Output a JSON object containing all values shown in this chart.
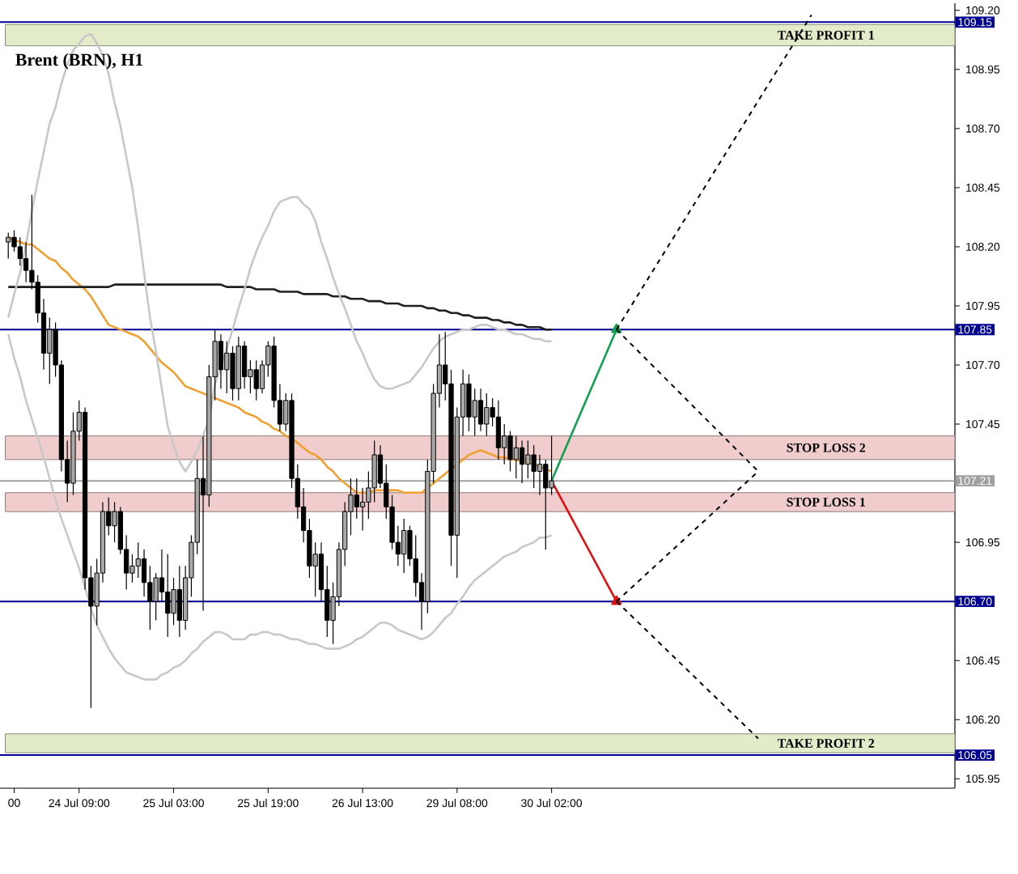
{
  "chart_data": {
    "type": "candlestick",
    "title": "Brent (BRN), H1",
    "categories": [
      null,
      "00",
      null,
      null,
      null,
      null,
      null,
      null,
      null,
      null,
      null,
      null,
      "24 Jul 09:00",
      null,
      null,
      null,
      null,
      null,
      null,
      null,
      null,
      null,
      null,
      null,
      null,
      null,
      null,
      null,
      "25 Jul 03:00",
      null,
      null,
      null,
      null,
      null,
      null,
      null,
      null,
      null,
      null,
      null,
      null,
      null,
      null,
      null,
      "25 Jul 19:00",
      null,
      null,
      null,
      null,
      null,
      null,
      null,
      null,
      null,
      null,
      null,
      null,
      null,
      null,
      null,
      "26 Jul 13:00",
      null,
      null,
      null,
      null,
      null,
      null,
      null,
      null,
      null,
      null,
      null,
      null,
      null,
      null,
      null,
      "29 Jul 08:00",
      null,
      null,
      null,
      null,
      null,
      null,
      null,
      null,
      null,
      null,
      null,
      null,
      null,
      null,
      null,
      "30 Jul 02:00",
      null,
      null,
      null,
      null,
      null,
      null,
      null,
      null,
      null,
      null,
      null,
      null,
      null,
      null,
      null,
      null,
      null,
      null,
      null,
      null,
      null,
      null,
      null,
      null,
      null,
      null,
      null,
      null,
      null,
      null,
      null,
      null,
      null,
      null,
      null,
      null,
      null,
      null,
      null,
      null,
      null,
      null,
      null,
      null
    ],
    "ohlc": [
      [
        108.22,
        108.26,
        108.15,
        108.24
      ],
      [
        108.24,
        108.27,
        108.18,
        108.2
      ],
      [
        108.2,
        108.24,
        108.12,
        108.15
      ],
      [
        108.15,
        108.22,
        108.05,
        108.1
      ],
      [
        108.1,
        108.42,
        108.02,
        108.05
      ],
      [
        108.05,
        108.08,
        107.88,
        107.92
      ],
      [
        107.92,
        107.98,
        107.68,
        107.75
      ],
      [
        107.75,
        107.9,
        107.62,
        107.85
      ],
      [
        107.85,
        107.88,
        107.65,
        107.7
      ],
      [
        107.7,
        107.72,
        107.25,
        107.3
      ],
      [
        107.3,
        107.38,
        107.12,
        107.2
      ],
      [
        107.2,
        107.5,
        107.15,
        107.42
      ],
      [
        107.42,
        107.55,
        107.38,
        107.5
      ],
      [
        107.5,
        107.52,
        106.75,
        106.8
      ],
      [
        106.8,
        106.85,
        106.25,
        106.68
      ],
      [
        106.68,
        106.88,
        106.6,
        106.82
      ],
      [
        106.82,
        107.12,
        106.78,
        107.08
      ],
      [
        107.08,
        107.14,
        106.98,
        107.02
      ],
      [
        107.02,
        107.12,
        106.95,
        107.08
      ],
      [
        107.08,
        107.1,
        106.9,
        106.92
      ],
      [
        106.92,
        106.98,
        106.75,
        106.82
      ],
      [
        106.82,
        106.9,
        106.78,
        106.85
      ],
      [
        106.85,
        106.95,
        106.8,
        106.88
      ],
      [
        106.88,
        106.92,
        106.72,
        106.78
      ],
      [
        106.78,
        106.85,
        106.58,
        106.7
      ],
      [
        106.7,
        106.82,
        106.62,
        106.8
      ],
      [
        106.8,
        106.92,
        106.7,
        106.74
      ],
      [
        106.74,
        106.9,
        106.55,
        106.65
      ],
      [
        106.65,
        106.8,
        106.6,
        106.75
      ],
      [
        106.75,
        106.85,
        106.55,
        106.62
      ],
      [
        106.62,
        106.85,
        106.58,
        106.8
      ],
      [
        106.8,
        106.98,
        106.72,
        106.95
      ],
      [
        106.95,
        107.3,
        106.9,
        107.22
      ],
      [
        107.22,
        107.4,
        106.66,
        107.15
      ],
      [
        107.15,
        107.7,
        107.1,
        107.65
      ],
      [
        107.65,
        107.85,
        107.55,
        107.8
      ],
      [
        107.8,
        107.83,
        107.6,
        107.68
      ],
      [
        107.68,
        107.8,
        107.58,
        107.75
      ],
      [
        107.75,
        107.78,
        107.55,
        107.6
      ],
      [
        107.6,
        107.82,
        107.55,
        107.78
      ],
      [
        107.78,
        107.8,
        107.6,
        107.65
      ],
      [
        107.65,
        107.72,
        107.58,
        107.68
      ],
      [
        107.68,
        107.72,
        107.55,
        107.6
      ],
      [
        107.6,
        107.72,
        107.58,
        107.7
      ],
      [
        107.7,
        107.8,
        107.65,
        107.78
      ],
      [
        107.78,
        107.82,
        107.52,
        107.55
      ],
      [
        107.55,
        107.62,
        107.42,
        107.45
      ],
      [
        107.45,
        107.58,
        107.42,
        107.55
      ],
      [
        107.55,
        107.58,
        107.18,
        107.22
      ],
      [
        107.22,
        107.28,
        107.05,
        107.1
      ],
      [
        107.1,
        107.18,
        106.95,
        107.0
      ],
      [
        107.0,
        107.05,
        106.8,
        106.85
      ],
      [
        106.85,
        106.95,
        106.72,
        106.9
      ],
      [
        106.9,
        106.95,
        106.7,
        106.75
      ],
      [
        106.75,
        106.85,
        106.55,
        106.62
      ],
      [
        106.62,
        106.78,
        106.52,
        106.72
      ],
      [
        106.72,
        106.95,
        106.68,
        106.92
      ],
      [
        106.92,
        107.12,
        106.85,
        107.08
      ],
      [
        107.08,
        107.22,
        106.98,
        107.15
      ],
      [
        107.15,
        107.22,
        107.05,
        107.1
      ],
      [
        107.1,
        107.18,
        107.0,
        107.12
      ],
      [
        107.12,
        107.25,
        107.05,
        107.18
      ],
      [
        107.18,
        107.38,
        107.12,
        107.32
      ],
      [
        107.32,
        107.36,
        107.18,
        107.2
      ],
      [
        107.2,
        107.28,
        107.05,
        107.1
      ],
      [
        107.1,
        107.15,
        106.92,
        106.95
      ],
      [
        106.95,
        107.02,
        106.85,
        106.9
      ],
      [
        106.9,
        107.05,
        106.82,
        107.0
      ],
      [
        107.0,
        107.02,
        106.85,
        106.88
      ],
      [
        106.88,
        106.98,
        106.72,
        106.78
      ],
      [
        106.78,
        106.82,
        106.58,
        106.7
      ],
      [
        106.7,
        107.3,
        106.65,
        107.25
      ],
      [
        107.25,
        107.62,
        107.2,
        107.58
      ],
      [
        107.58,
        107.83,
        107.52,
        107.7
      ],
      [
        107.7,
        107.84,
        107.55,
        107.62
      ],
      [
        107.62,
        107.68,
        106.85,
        106.98
      ],
      [
        106.98,
        107.52,
        106.8,
        107.48
      ],
      [
        107.48,
        107.68,
        107.4,
        107.62
      ],
      [
        107.62,
        107.66,
        107.42,
        107.48
      ],
      [
        107.48,
        107.6,
        107.4,
        107.55
      ],
      [
        107.55,
        107.6,
        107.42,
        107.45
      ],
      [
        107.45,
        107.58,
        107.4,
        107.52
      ],
      [
        107.52,
        107.56,
        107.44,
        107.48
      ],
      [
        107.48,
        107.55,
        107.3,
        107.35
      ],
      [
        107.35,
        107.45,
        107.28,
        107.4
      ],
      [
        107.4,
        107.42,
        107.25,
        107.3
      ],
      [
        107.3,
        107.4,
        107.22,
        107.35
      ],
      [
        107.35,
        107.38,
        107.2,
        107.28
      ],
      [
        107.28,
        107.38,
        107.22,
        107.32
      ],
      [
        107.32,
        107.36,
        107.18,
        107.25
      ],
      [
        107.25,
        107.32,
        107.15,
        107.28
      ],
      [
        107.28,
        107.3,
        106.92,
        107.18
      ],
      [
        107.18,
        107.4,
        107.15,
        107.21
      ],
      null,
      null,
      null,
      null,
      null,
      null,
      null,
      null,
      null,
      null,
      null,
      null,
      null,
      null,
      null,
      null,
      null,
      null,
      null,
      null,
      null,
      null,
      null,
      null,
      null,
      null,
      null,
      null,
      null,
      null,
      null,
      null,
      null,
      null,
      null,
      null,
      null,
      null,
      null,
      null,
      null,
      null,
      null,
      null
    ],
    "series": [
      {
        "type": "line",
        "color": "#f0a030",
        "values": [
          108.24,
          108.23,
          108.22,
          108.21,
          108.21,
          108.19,
          108.17,
          108.15,
          108.14,
          108.11,
          108.09,
          108.06,
          108.04,
          108.02,
          107.99,
          107.95,
          107.91,
          107.87,
          107.86,
          107.85,
          107.84,
          107.83,
          107.82,
          107.8,
          107.77,
          107.74,
          107.71,
          107.69,
          107.67,
          107.64,
          107.61,
          107.6,
          107.59,
          107.58,
          107.57,
          107.56,
          107.55,
          107.54,
          107.53,
          107.52,
          107.5,
          107.49,
          107.48,
          107.46,
          107.45,
          107.43,
          107.42,
          107.4,
          107.39,
          107.37,
          107.35,
          107.33,
          107.32,
          107.3,
          107.27,
          107.25,
          107.22,
          107.2,
          107.18,
          107.16,
          107.16,
          107.16,
          107.17,
          107.17,
          107.17,
          107.17,
          107.17,
          107.16,
          107.16,
          107.16,
          107.16,
          107.18,
          107.2,
          107.22,
          107.24,
          107.26,
          107.28,
          107.3,
          107.32,
          107.33,
          107.34,
          107.33,
          107.32,
          107.31,
          107.31,
          107.3,
          107.3,
          107.29,
          107.29,
          107.28,
          107.27,
          107.26,
          107.25,
          null,
          null,
          null,
          null,
          null,
          null,
          null,
          null,
          null,
          null,
          null,
          null,
          null,
          null,
          null,
          null,
          null,
          null,
          null,
          null,
          null,
          null,
          null,
          null,
          null,
          null,
          null,
          null,
          null,
          null,
          null,
          null,
          null,
          null,
          null,
          null,
          null,
          null,
          null,
          null,
          null,
          null,
          null,
          null
        ]
      },
      {
        "type": "line",
        "color": "#202020",
        "values": [
          108.03,
          108.03,
          108.03,
          108.03,
          108.03,
          108.03,
          108.03,
          108.03,
          108.03,
          108.03,
          108.03,
          108.03,
          108.03,
          108.03,
          108.03,
          108.03,
          108.03,
          108.03,
          108.04,
          108.04,
          108.04,
          108.04,
          108.04,
          108.04,
          108.04,
          108.04,
          108.04,
          108.04,
          108.04,
          108.04,
          108.04,
          108.04,
          108.04,
          108.04,
          108.04,
          108.04,
          108.04,
          108.03,
          108.03,
          108.03,
          108.03,
          108.03,
          108.02,
          108.02,
          108.02,
          108.02,
          108.01,
          108.01,
          108.01,
          108.01,
          108.0,
          108.0,
          108.0,
          108.0,
          108.0,
          107.99,
          107.99,
          107.99,
          107.98,
          107.98,
          107.98,
          107.97,
          107.97,
          107.97,
          107.96,
          107.96,
          107.96,
          107.95,
          107.95,
          107.95,
          107.95,
          107.94,
          107.94,
          107.93,
          107.93,
          107.92,
          107.92,
          107.91,
          107.91,
          107.9,
          107.9,
          107.9,
          107.89,
          107.89,
          107.88,
          107.88,
          107.87,
          107.87,
          107.86,
          107.86,
          107.86,
          107.85,
          107.85,
          null,
          null,
          null,
          null,
          null,
          null,
          null,
          null,
          null,
          null,
          null,
          null,
          null,
          null,
          null,
          null,
          null,
          null,
          null,
          null,
          null,
          null,
          null,
          null,
          null,
          null,
          null,
          null,
          null,
          null,
          null,
          null,
          null,
          null,
          null,
          null,
          null,
          null,
          null,
          null,
          null,
          null,
          null,
          null
        ]
      },
      {
        "type": "line",
        "color": "#c8c8c8",
        "values": [
          107.9,
          108.0,
          108.09,
          108.21,
          108.35,
          108.48,
          108.6,
          108.72,
          108.79,
          108.89,
          108.97,
          109.03,
          109.06,
          109.09,
          109.1,
          109.06,
          109.01,
          108.93,
          108.81,
          108.71,
          108.58,
          108.45,
          108.28,
          108.09,
          107.9,
          107.76,
          107.6,
          107.44,
          107.36,
          107.29,
          107.25,
          107.29,
          107.34,
          107.4,
          107.47,
          107.62,
          107.69,
          107.77,
          107.85,
          107.94,
          108.02,
          108.11,
          108.18,
          108.24,
          108.29,
          108.35,
          108.39,
          108.4,
          108.41,
          108.41,
          108.38,
          108.36,
          108.31,
          108.22,
          108.15,
          108.07,
          108.0,
          107.94,
          107.87,
          107.8,
          107.75,
          107.69,
          107.64,
          107.61,
          107.6,
          107.6,
          107.61,
          107.62,
          107.63,
          107.66,
          107.69,
          107.73,
          107.77,
          107.8,
          107.82,
          107.83,
          107.84,
          107.85,
          107.85,
          107.86,
          107.87,
          107.87,
          107.86,
          107.85,
          107.85,
          107.84,
          107.83,
          107.83,
          107.82,
          107.81,
          107.81,
          107.8,
          107.8,
          null,
          null,
          null,
          null,
          null,
          null,
          null,
          null,
          null,
          null,
          null,
          null,
          null,
          null,
          null,
          null,
          null,
          null,
          null,
          null,
          null,
          null,
          null,
          null,
          null,
          null,
          null,
          null,
          null,
          null,
          null,
          null,
          null,
          null,
          null,
          null,
          null,
          null,
          null,
          null,
          null,
          null,
          null,
          null
        ]
      },
      {
        "type": "line",
        "color": "#c8c8c8",
        "values": [
          107.83,
          107.73,
          107.65,
          107.55,
          107.47,
          107.39,
          107.31,
          107.22,
          107.13,
          107.05,
          106.98,
          106.91,
          106.84,
          106.76,
          106.67,
          106.6,
          106.55,
          106.5,
          106.46,
          106.43,
          106.4,
          106.39,
          106.38,
          106.37,
          106.37,
          106.37,
          106.39,
          106.4,
          106.42,
          106.43,
          106.45,
          106.48,
          106.5,
          106.53,
          106.55,
          106.57,
          106.57,
          106.56,
          106.54,
          106.54,
          106.54,
          106.56,
          106.56,
          106.57,
          106.57,
          106.56,
          106.56,
          106.55,
          106.54,
          106.54,
          106.53,
          106.52,
          106.52,
          106.51,
          106.5,
          106.5,
          106.5,
          106.51,
          106.52,
          106.54,
          106.55,
          106.57,
          106.59,
          106.61,
          106.61,
          106.6,
          106.58,
          106.57,
          106.56,
          106.55,
          106.54,
          106.55,
          106.57,
          106.6,
          106.63,
          106.65,
          106.69,
          106.72,
          106.76,
          106.79,
          106.81,
          106.83,
          106.85,
          106.87,
          106.89,
          106.9,
          106.91,
          106.93,
          106.94,
          106.95,
          106.97,
          106.97,
          106.98,
          null,
          null,
          null,
          null,
          null,
          null,
          null,
          null,
          null,
          null,
          null,
          null,
          null,
          null,
          null,
          null,
          null,
          null,
          null,
          null,
          null,
          null,
          null,
          null,
          null,
          null,
          null,
          null,
          null,
          null,
          null,
          null,
          null,
          null,
          null,
          null,
          null,
          null,
          null,
          null,
          null,
          null,
          null,
          null
        ]
      },
      {
        "type": "line",
        "color": "#10a050",
        "marker": "triangle",
        "values": [
          null,
          null,
          null,
          null,
          null,
          null,
          null,
          null,
          null,
          null,
          null,
          null,
          null,
          null,
          null,
          null,
          null,
          null,
          null,
          null,
          null,
          null,
          null,
          null,
          null,
          null,
          null,
          null,
          null,
          null,
          null,
          null,
          null,
          null,
          null,
          null,
          null,
          null,
          null,
          null,
          null,
          null,
          null,
          null,
          null,
          null,
          null,
          null,
          null,
          null,
          null,
          null,
          null,
          null,
          null,
          null,
          null,
          null,
          null,
          null,
          null,
          null,
          null,
          null,
          null,
          null,
          null,
          null,
          null,
          null,
          null,
          null,
          null,
          null,
          null,
          null,
          null,
          null,
          null,
          null,
          null,
          null,
          null,
          null,
          null,
          null,
          null,
          null,
          null,
          null,
          null,
          null,
          107.21,
          null,
          null,
          null,
          null,
          null,
          null,
          null,
          null,
          null,
          null,
          107.85,
          null,
          null,
          null,
          null,
          null,
          null,
          null,
          null,
          null,
          null,
          null,
          null,
          null,
          null,
          null,
          null,
          null,
          null,
          null,
          null,
          null,
          null,
          null,
          null,
          null,
          null,
          null,
          null,
          null,
          null,
          null,
          null,
          null
        ]
      },
      {
        "type": "line",
        "color": "#e01010",
        "marker": "triangle",
        "values": [
          null,
          null,
          null,
          null,
          null,
          null,
          null,
          null,
          null,
          null,
          null,
          null,
          null,
          null,
          null,
          null,
          null,
          null,
          null,
          null,
          null,
          null,
          null,
          null,
          null,
          null,
          null,
          null,
          null,
          null,
          null,
          null,
          null,
          null,
          null,
          null,
          null,
          null,
          null,
          null,
          null,
          null,
          null,
          null,
          null,
          null,
          null,
          null,
          null,
          null,
          null,
          null,
          null,
          null,
          null,
          null,
          null,
          null,
          null,
          null,
          null,
          null,
          null,
          null,
          null,
          null,
          null,
          null,
          null,
          null,
          null,
          null,
          null,
          null,
          null,
          null,
          null,
          null,
          null,
          null,
          null,
          null,
          null,
          null,
          null,
          null,
          null,
          null,
          null,
          null,
          null,
          null,
          107.21,
          null,
          null,
          null,
          null,
          null,
          null,
          null,
          null,
          null,
          null,
          106.7,
          null,
          null,
          null,
          null,
          null,
          null,
          null,
          null,
          null,
          null,
          null,
          null,
          null,
          null,
          null,
          null,
          null,
          null,
          null,
          null,
          null,
          null,
          null,
          null,
          null,
          null,
          null,
          null,
          null,
          null,
          null,
          null,
          null
        ]
      },
      {
        "type": "line",
        "color": "#000000",
        "line_style": "dashed",
        "values": [
          null,
          null,
          null,
          null,
          null,
          null,
          null,
          null,
          null,
          null,
          null,
          null,
          null,
          null,
          null,
          null,
          null,
          null,
          null,
          null,
          null,
          null,
          null,
          null,
          null,
          null,
          null,
          null,
          null,
          null,
          null,
          null,
          null,
          null,
          null,
          null,
          null,
          null,
          null,
          null,
          null,
          null,
          null,
          null,
          null,
          null,
          null,
          null,
          null,
          null,
          null,
          null,
          null,
          null,
          null,
          null,
          null,
          null,
          null,
          null,
          null,
          null,
          null,
          null,
          null,
          null,
          null,
          null,
          null,
          null,
          null,
          null,
          null,
          null,
          null,
          null,
          null,
          null,
          null,
          null,
          null,
          null,
          null,
          null,
          null,
          null,
          null,
          null,
          null,
          null,
          null,
          null,
          null,
          null,
          null,
          null,
          null,
          null,
          null,
          null,
          null,
          null,
          null,
          107.85,
          null,
          null,
          null,
          null,
          null,
          null,
          null,
          null,
          null,
          null,
          null,
          null,
          null,
          null,
          null,
          null,
          null,
          null,
          null,
          null,
          null,
          null,
          null,
          null,
          null,
          null,
          null,
          null,
          null,
          null,
          null,
          null,
          109.18
        ]
      },
      {
        "type": "line",
        "color": "#000000",
        "line_style": "dashed",
        "values": [
          null,
          null,
          null,
          null,
          null,
          null,
          null,
          null,
          null,
          null,
          null,
          null,
          null,
          null,
          null,
          null,
          null,
          null,
          null,
          null,
          null,
          null,
          null,
          null,
          null,
          null,
          null,
          null,
          null,
          null,
          null,
          null,
          null,
          null,
          null,
          null,
          null,
          null,
          null,
          null,
          null,
          null,
          null,
          null,
          null,
          null,
          null,
          null,
          null,
          null,
          null,
          null,
          null,
          null,
          null,
          null,
          null,
          null,
          null,
          null,
          null,
          null,
          null,
          null,
          null,
          null,
          null,
          null,
          null,
          null,
          null,
          null,
          null,
          null,
          null,
          null,
          null,
          null,
          null,
          null,
          null,
          null,
          null,
          null,
          null,
          null,
          null,
          null,
          null,
          null,
          null,
          null,
          null,
          null,
          null,
          null,
          null,
          null,
          null,
          null,
          null,
          null,
          null,
          107.85,
          null,
          null,
          null,
          null,
          null,
          null,
          null,
          null,
          null,
          null,
          null,
          null,
          null,
          null,
          null,
          null,
          null,
          null,
          null,
          null,
          null,
          null,
          null,
          107.25,
          null,
          null,
          null,
          null,
          null,
          null,
          null,
          null,
          null
        ]
      },
      {
        "type": "line",
        "color": "#000000",
        "line_style": "dashed",
        "values": [
          null,
          null,
          null,
          null,
          null,
          null,
          null,
          null,
          null,
          null,
          null,
          null,
          null,
          null,
          null,
          null,
          null,
          null,
          null,
          null,
          null,
          null,
          null,
          null,
          null,
          null,
          null,
          null,
          null,
          null,
          null,
          null,
          null,
          null,
          null,
          null,
          null,
          null,
          null,
          null,
          null,
          null,
          null,
          null,
          null,
          null,
          null,
          null,
          null,
          null,
          null,
          null,
          null,
          null,
          null,
          null,
          null,
          null,
          null,
          null,
          null,
          null,
          null,
          null,
          null,
          null,
          null,
          null,
          null,
          null,
          null,
          null,
          null,
          null,
          null,
          null,
          null,
          null,
          null,
          null,
          null,
          null,
          null,
          null,
          null,
          null,
          null,
          null,
          null,
          null,
          null,
          null,
          null,
          null,
          null,
          null,
          null,
          null,
          null,
          null,
          null,
          null,
          null,
          106.7,
          null,
          null,
          null,
          null,
          null,
          null,
          null,
          null,
          null,
          null,
          null,
          null,
          null,
          null,
          null,
          null,
          null,
          null,
          null,
          null,
          null,
          null,
          null,
          107.25,
          null,
          null,
          null,
          null,
          null,
          null,
          null,
          null,
          null
        ]
      },
      {
        "type": "line",
        "color": "#000000",
        "line_style": "dashed",
        "values": [
          null,
          null,
          null,
          null,
          null,
          null,
          null,
          null,
          null,
          null,
          null,
          null,
          null,
          null,
          null,
          null,
          null,
          null,
          null,
          null,
          null,
          null,
          null,
          null,
          null,
          null,
          null,
          null,
          null,
          null,
          null,
          null,
          null,
          null,
          null,
          null,
          null,
          null,
          null,
          null,
          null,
          null,
          null,
          null,
          null,
          null,
          null,
          null,
          null,
          null,
          null,
          null,
          null,
          null,
          null,
          null,
          null,
          null,
          null,
          null,
          null,
          null,
          null,
          null,
          null,
          null,
          null,
          null,
          null,
          null,
          null,
          null,
          null,
          null,
          null,
          null,
          null,
          null,
          null,
          null,
          null,
          null,
          null,
          null,
          null,
          null,
          null,
          null,
          null,
          null,
          null,
          null,
          null,
          null,
          null,
          null,
          null,
          null,
          null,
          null,
          null,
          null,
          null,
          106.7,
          null,
          null,
          null,
          null,
          null,
          null,
          null,
          null,
          null,
          null,
          null,
          null,
          null,
          null,
          null,
          null,
          null,
          null,
          null,
          null,
          null,
          null,
          null,
          106.12,
          null,
          null,
          null,
          null,
          null,
          null,
          null,
          null,
          null
        ]
      }
    ],
    "ylim": [
      105.91,
      109.23
    ],
    "yticks": [
      {
        "value": 105.95,
        "label": "105.95"
      },
      {
        "value": 106.2,
        "label": "106.20"
      },
      {
        "value": 106.45,
        "label": "106.45"
      },
      {
        "value": 106.95,
        "label": "106.95"
      },
      {
        "value": 107.45,
        "label": "107.45"
      },
      {
        "value": 107.7,
        "label": "107.70"
      },
      {
        "value": 107.95,
        "label": "107.95"
      },
      {
        "value": 108.2,
        "label": "108.20"
      },
      {
        "value": 108.45,
        "label": "108.45"
      },
      {
        "value": 108.7,
        "label": "108.70"
      },
      {
        "value": 108.95,
        "label": "108.95"
      },
      {
        "value": 109.2,
        "label": "109.20"
      }
    ],
    "ref_lines": [
      {
        "axis": "y",
        "value": 109.15,
        "label": "109.15",
        "color": "#000090"
      },
      {
        "axis": "y",
        "value": 107.85,
        "label": "107.85",
        "color": "#000090"
      },
      {
        "axis": "y",
        "value": 107.21,
        "label": "107.21",
        "color": "#a0a0a0"
      },
      {
        "axis": "y",
        "value": 106.7,
        "label": "106.70",
        "color": "#000090"
      },
      {
        "axis": "y",
        "value": 106.05,
        "label": "106.05",
        "color": "#000090"
      }
    ],
    "bands": [
      {
        "axis": "y",
        "from": 109.05,
        "to": 109.14,
        "label": "TAKE PROFIT 1",
        "color": "#e2ecc8"
      },
      {
        "axis": "y",
        "from": 107.3,
        "to": 107.4,
        "label": "STOP LOSS 2",
        "color": "#f0cccc"
      },
      {
        "axis": "y",
        "from": 107.08,
        "to": 107.16,
        "label": "STOP LOSS 1",
        "color": "#f0cccc"
      },
      {
        "axis": "y",
        "from": 106.06,
        "to": 106.14,
        "label": "TAKE PROFIT 2",
        "color": "#e2ecc8"
      }
    ]
  }
}
